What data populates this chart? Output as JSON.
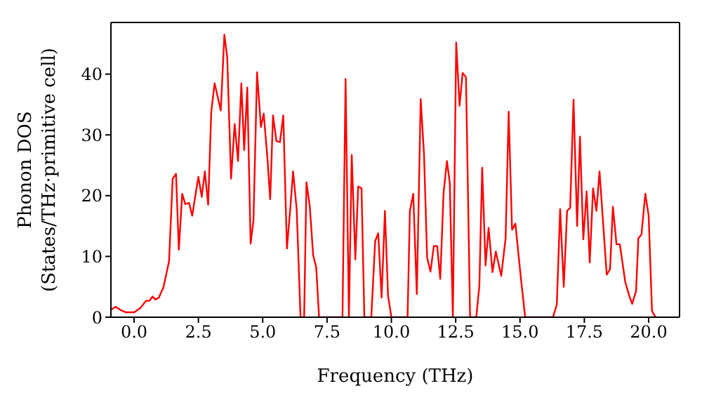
{
  "chart_data": {
    "type": "line",
    "xlabel": "Frequency (THz)",
    "ylabel": "Phonon DOS\n(States/THz·primitive cell)",
    "xlim": [
      -0.9,
      21.2
    ],
    "ylim": [
      0,
      48.5
    ],
    "xticks": [
      {
        "value": 0,
        "label": "0.0"
      },
      {
        "value": 2.5,
        "label": "2.5"
      },
      {
        "value": 5,
        "label": "5.0"
      },
      {
        "value": 7.5,
        "label": "7.5"
      },
      {
        "value": 10,
        "label": "10.0"
      },
      {
        "value": 12.5,
        "label": "12.5"
      },
      {
        "value": 15,
        "label": "15.0"
      },
      {
        "value": 17.5,
        "label": "17.5"
      },
      {
        "value": 20,
        "label": "20.0"
      }
    ],
    "yticks": [
      0,
      10,
      20,
      30,
      40
    ],
    "marker": "none",
    "line_style": "solid",
    "series": [
      {
        "color": "#ff0000",
        "x": [
          -0.87,
          -0.72,
          -0.49,
          -0.31,
          0,
          0.24,
          0.47,
          0.6,
          0.72,
          0.83,
          0.96,
          1.14,
          1.36,
          1.5,
          1.63,
          1.74,
          1.87,
          1.99,
          2.14,
          2.26,
          2.37,
          2.5,
          2.63,
          2.75,
          2.88,
          3.0,
          3.13,
          3.37,
          3.51,
          3.62,
          3.77,
          3.91,
          4.04,
          4.17,
          4.28,
          4.4,
          4.53,
          4.64,
          4.78,
          4.93,
          5.04,
          5.18,
          5.29,
          5.4,
          5.53,
          5.67,
          5.8,
          5.94,
          6.07,
          6.18,
          6.32,
          6.47,
          6.61,
          6.7,
          6.83,
          6.96,
          7.08,
          7.19,
          8.1,
          8.22,
          8.35,
          8.46,
          8.6,
          8.71,
          8.84,
          8.95,
          9.22,
          9.37,
          9.49,
          9.62,
          9.75,
          9.87,
          10.0,
          10.63,
          10.72,
          10.85,
          10.99,
          11.14,
          11.27,
          11.39,
          11.52,
          11.65,
          11.78,
          11.9,
          12.03,
          12.16,
          12.27,
          12.39,
          12.52,
          12.65,
          12.77,
          12.9,
          13.06,
          13.3,
          13.42,
          13.53,
          13.66,
          13.78,
          13.93,
          14.06,
          14.27,
          14.44,
          14.56,
          14.69,
          14.82,
          15.02,
          15.2,
          16.28,
          16.43,
          16.56,
          16.7,
          16.83,
          16.95,
          17.08,
          17.22,
          17.33,
          17.46,
          17.59,
          17.71,
          17.84,
          17.97,
          18.09,
          18.37,
          18.5,
          18.61,
          18.75,
          18.88,
          19.09,
          19.27,
          19.36,
          19.51,
          19.6,
          19.72,
          19.87,
          20.0,
          20.13,
          20.27
        ],
        "values": [
          1.3,
          1.7,
          1.1,
          0.8,
          0.8,
          1.5,
          2.7,
          2.7,
          3.4,
          2.9,
          3.2,
          4.9,
          9.2,
          22.8,
          23.6,
          11.1,
          20.3,
          18.6,
          18.8,
          16.7,
          19.7,
          23.1,
          19.8,
          24,
          18.5,
          33.8,
          38.5,
          34,
          46.5,
          42.8,
          22.8,
          31.8,
          25.7,
          38.5,
          27.5,
          37.8,
          12.1,
          15.9,
          40.3,
          31.3,
          33.5,
          26.3,
          19.4,
          33.2,
          29,
          28.8,
          33.2,
          11.3,
          17.8,
          24,
          17.8,
          0,
          0,
          22.2,
          18.2,
          10.2,
          8.2,
          0,
          0,
          39.2,
          0,
          26.7,
          9.5,
          21.5,
          21.2,
          0,
          0,
          12.5,
          13.8,
          3.2,
          17.5,
          3.6,
          0,
          0,
          17.5,
          20.3,
          3.8,
          35.9,
          26.7,
          9.8,
          7.5,
          11.7,
          11.7,
          6.3,
          20.5,
          25.7,
          22.1,
          0,
          45.2,
          34.8,
          40.2,
          39.5,
          0,
          0,
          5.2,
          24.6,
          8.5,
          14.7,
          7.4,
          10.8,
          6.8,
          13,
          33.8,
          14.4,
          15.4,
          7,
          0,
          0,
          2.1,
          17.8,
          5,
          17.5,
          18,
          35.8,
          15,
          29.7,
          12.8,
          20.7,
          9,
          21.2,
          17.5,
          24,
          7,
          7.9,
          18.2,
          12,
          12,
          5.8,
          3.2,
          2.2,
          4.3,
          13,
          13.6,
          20.3,
          16.7,
          1,
          0
        ]
      }
    ]
  }
}
